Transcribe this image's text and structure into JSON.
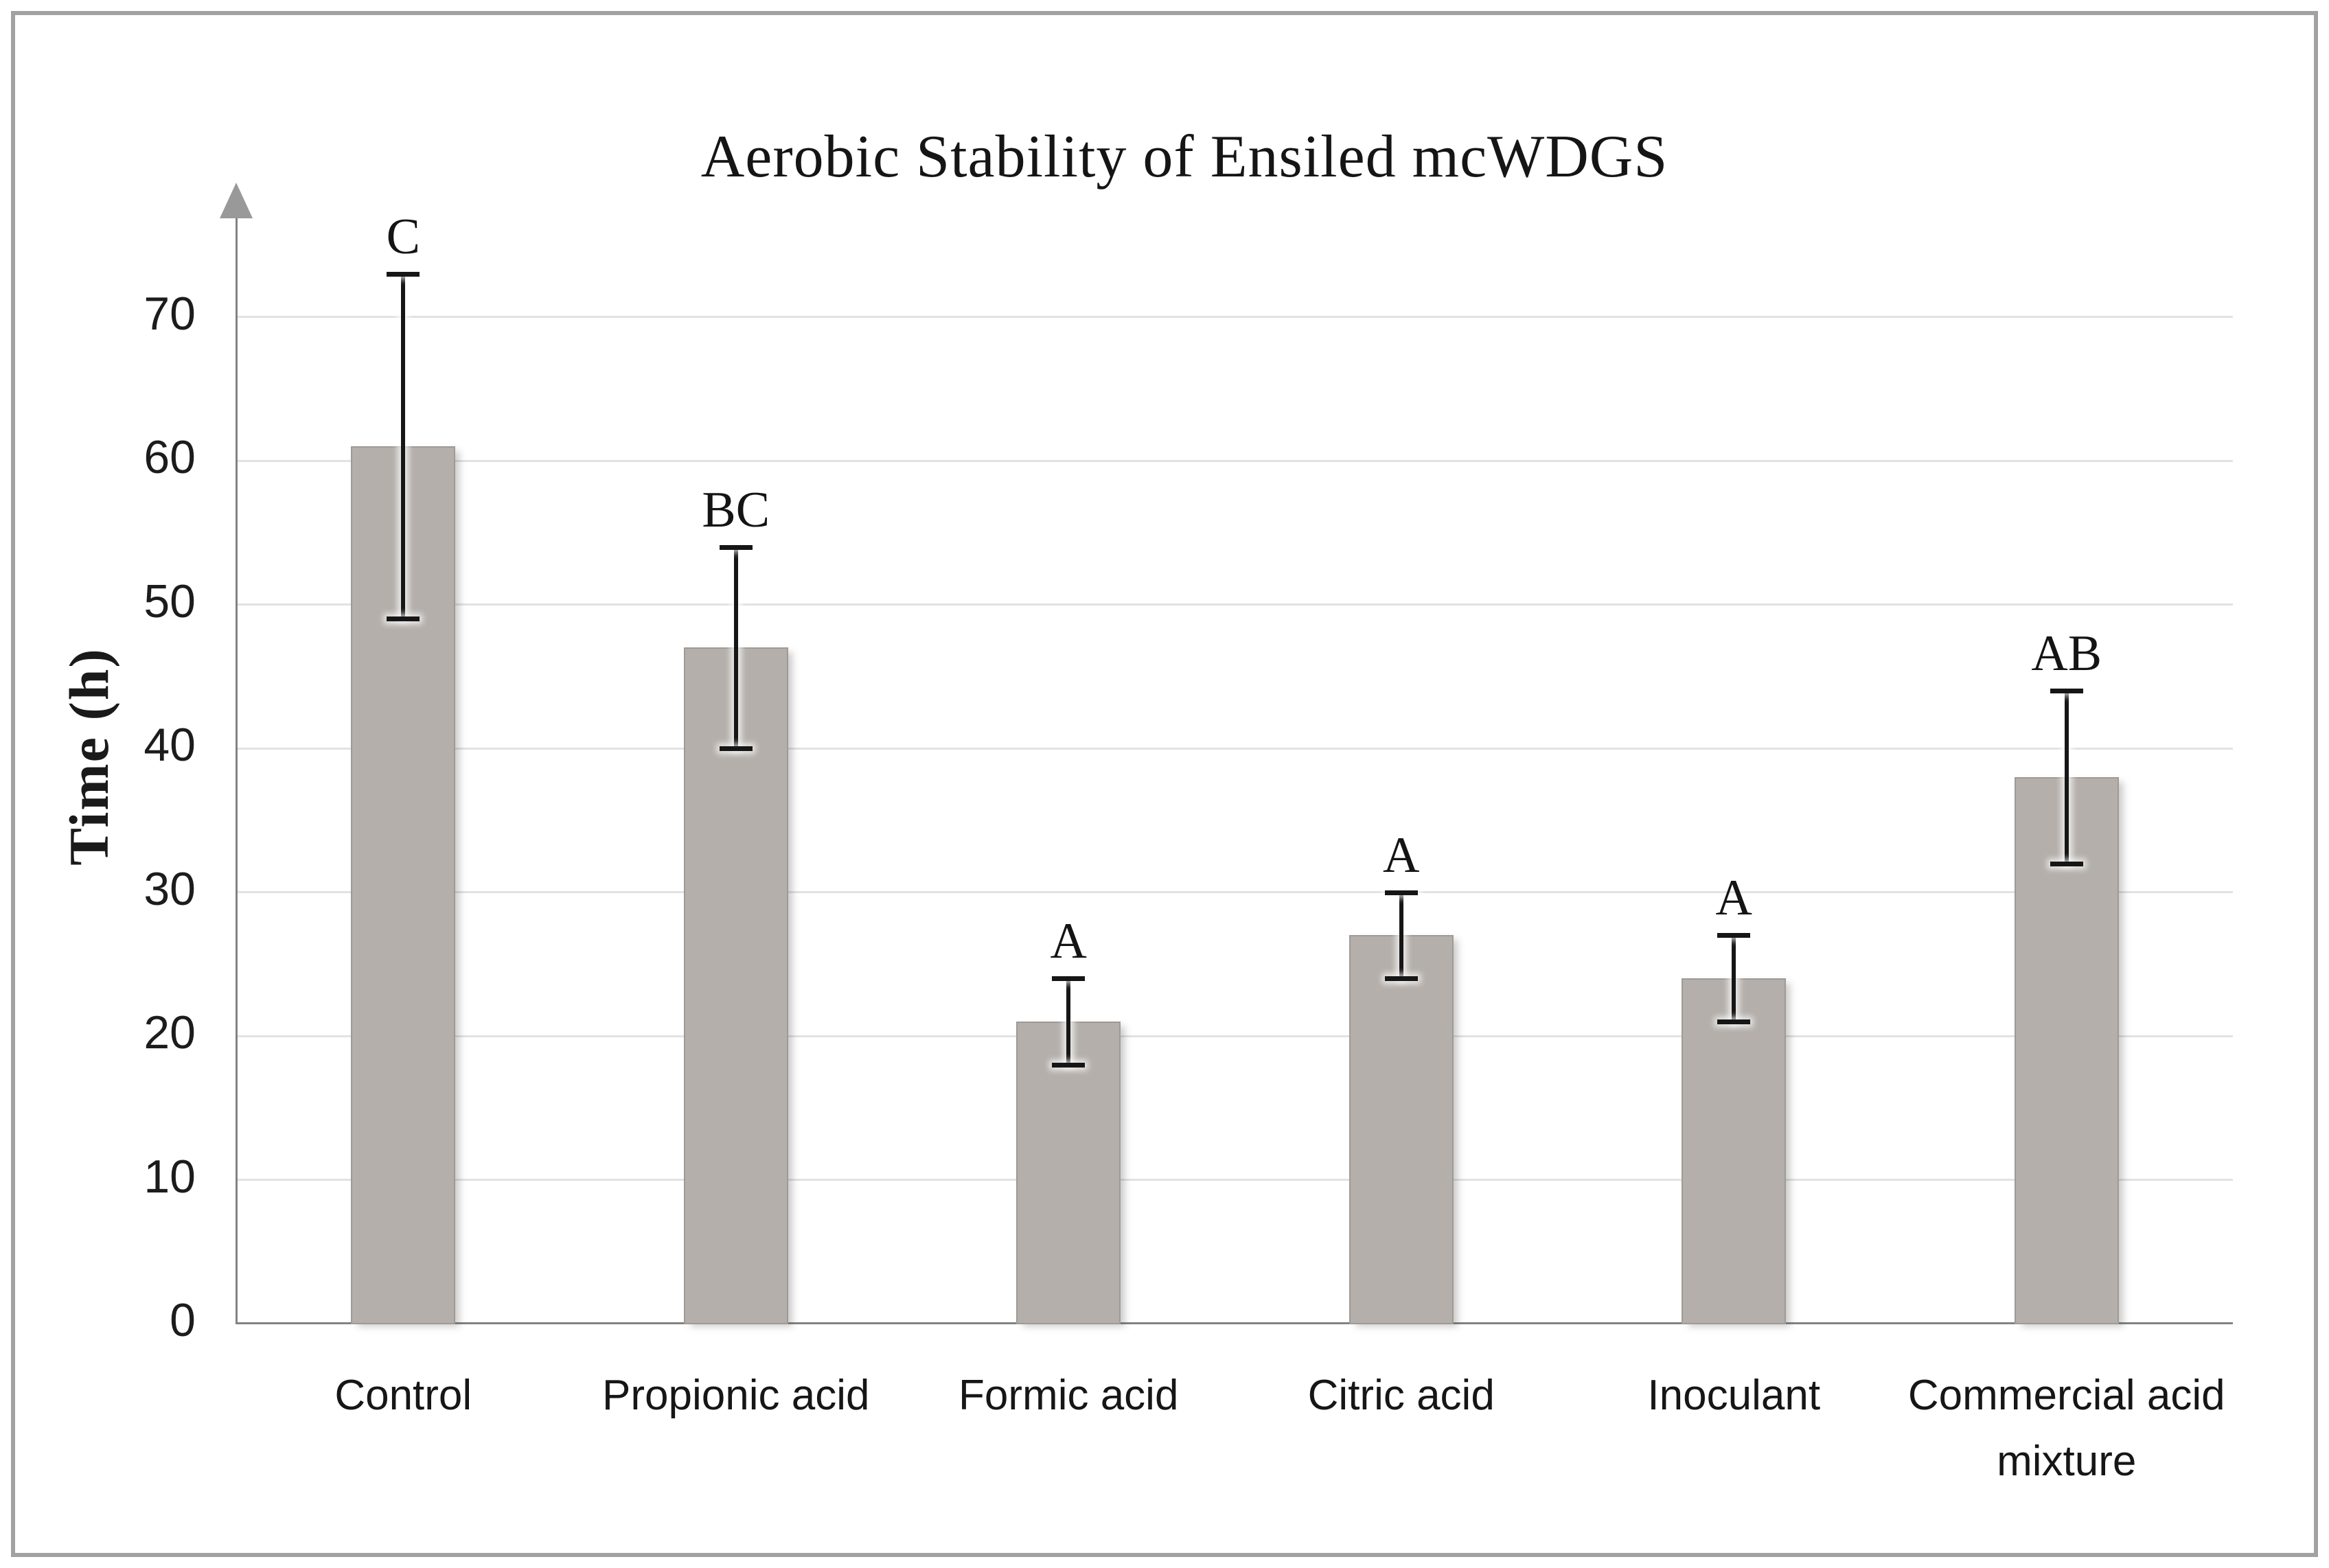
{
  "figure": {
    "border_color": "#a2a2a2",
    "background_color": "#ffffff"
  },
  "chart_data": {
    "type": "bar",
    "title": "Aerobic Stability of Ensiled mcWDGS",
    "xlabel": "",
    "ylabel": "Time (h)",
    "ylim": [
      0,
      70
    ],
    "yticks": [
      0,
      10,
      20,
      30,
      40,
      50,
      60,
      70
    ],
    "grid": "horizontal",
    "legend_position": "none",
    "categories": [
      "Control",
      "Propionic acid",
      "Formic acid",
      "Citric acid",
      "Inoculant",
      "Commercial acid mixture"
    ],
    "values": [
      61,
      47,
      21,
      27,
      24,
      38
    ],
    "error_low": [
      49,
      40,
      18,
      24,
      21,
      32
    ],
    "error_high": [
      73,
      54,
      24,
      30,
      27,
      44
    ],
    "significance_letters": [
      "C",
      "BC",
      "A",
      "A",
      "A",
      "AB"
    ],
    "colors": {
      "bar_fill": "#b4afab",
      "bar_border": "#9f9a96",
      "error_bar": "#161616",
      "gridline": "#e2e2e2",
      "axis_line": "#828282",
      "arrow": "#999999",
      "text": "#1a1a1a"
    }
  }
}
